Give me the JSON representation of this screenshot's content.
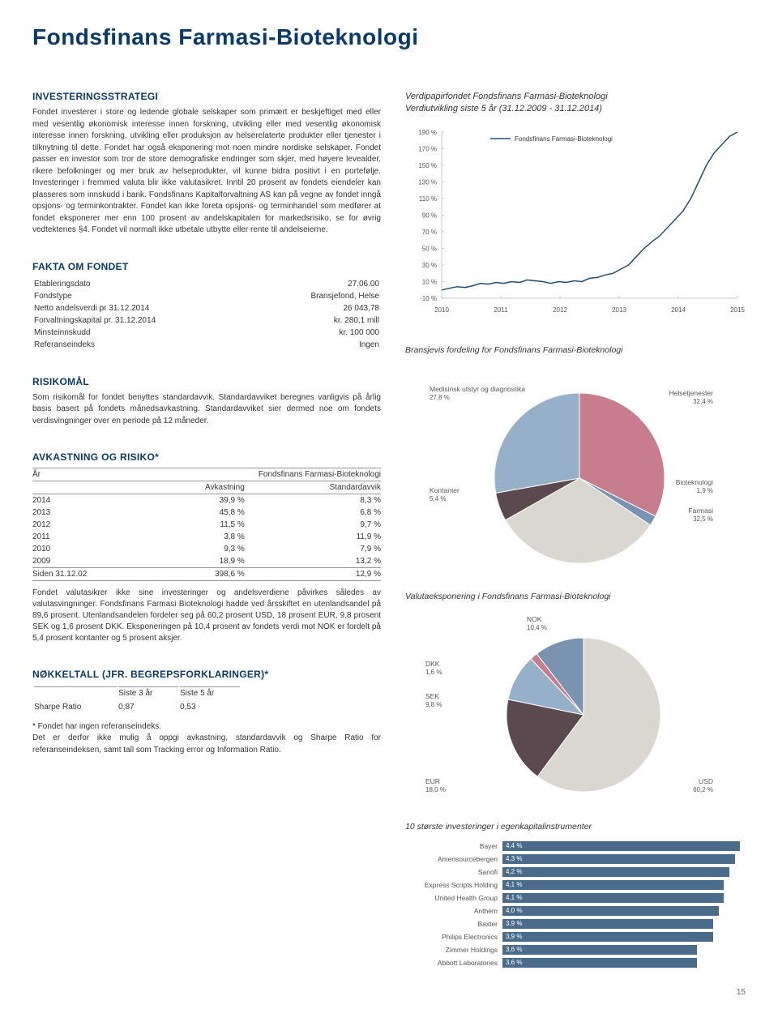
{
  "page": {
    "title": "Fondsfinans Farmasi-Bioteknologi",
    "number": "15"
  },
  "strategy": {
    "heading": "INVESTERINGSSTRATEGI",
    "text": "Fondet investerer i store og ledende globale selskaper som primært er beskjeftiget med eller med vesentlig økonomisk interesse innen forskning, utvikling eller med vesentlig økonomisk interesse innen forskning, utvikling eller produksjon av helserelaterte produkter eller tjenester i tilknytning til dette. Fondet har også eksponering mot noen mindre nordiske selskaper. Fondet passer en investor som tror de store demografiske endringer som skjer, med høyere levealder, rikere befolkninger og mer bruk av helseprodukter, vil kunne bidra positivt i en portefølje. Investeringer i fremmed valuta blir ikke valutasikret. Inntil 20 prosent av fondets eiendeler kan plasseres som innskudd i bank. Fondsfinans Kapitalforvaltning AS kan på vegne av fondet inngå opsjons- og terminkontrakter. Fondet kan ikke foreta opsjons- og terminhandel som medfører at fondet eksponerer mer enn 100 prosent av andelskapitalen for markedsrisiko, se for øvrig vedtektenes §4. Fondet vil normalt ikke utbetale utbytte eller rente til andelseierne."
  },
  "facts": {
    "heading": "FAKTA OM FONDET",
    "rows": [
      [
        "Etableringsdato",
        "27.06.00"
      ],
      [
        "Fondstype",
        "Bransjefond, Helse"
      ],
      [
        "Netto andelsverdi pr 31.12.2014",
        "26 043,78"
      ],
      [
        "Forvaltningskapital pr. 31.12.2014",
        "kr. 280,1 mill"
      ],
      [
        "Minsteinnskudd",
        "kr. 100 000"
      ],
      [
        "Referanseindeks",
        "Ingen"
      ]
    ]
  },
  "risk": {
    "heading": "RISIKOMÅL",
    "text": "Som risikomål for fondet benyttes standardavvik. Standardavviket beregnes vanligvis på årlig basis basert på fondets månedsavkastning. Standardavviket sier dermed noe om fondets verdisvingninger over en periode på 12 måneder."
  },
  "returns": {
    "heading": "AVKASTNING OG RISIKO*",
    "header_label": "Fondsfinans Farmasi-Bioteknologi",
    "col_year": "År",
    "col_return": "Avkastning",
    "col_std": "Standardavvik",
    "rows": [
      [
        "2014",
        "39,9 %",
        "8,3 %"
      ],
      [
        "2013",
        "45,8 %",
        "6,8 %"
      ],
      [
        "2012",
        "11,5 %",
        "9,7 %"
      ],
      [
        "2011",
        "3,8 %",
        "11,9 %"
      ],
      [
        "2010",
        "9,3 %",
        "7,9 %"
      ],
      [
        "2009",
        "18,9 %",
        "13,2 %"
      ],
      [
        "Siden 31.12.02",
        "398,6 %",
        "12,9 %"
      ]
    ],
    "note": "Fondet valutasikrer ikke sine investeringer og andelsverdiene påvirkes således av valutasvingninger. Fondsfinans Farmasi Bioteknologi hadde ved årsskiftet en utenlandsandel på 89,6 prosent. Utenlandsandelen fordeler seg på 60,2 prosent USD, 18 prosent EUR, 9,8 prosent SEK og 1,6 prosent DKK. Eksponeringen på 10,4 prosent av fondets verdi mot NOK er fordelt på 5,4 prosent kontanter og 5 prosent aksjer."
  },
  "keyfig": {
    "heading": "NØKKELTALL (JFR. BEGREPSFORKLARINGER)*",
    "col3": "Siste 3 år",
    "col5": "Siste 5 år",
    "row_label": "Sharpe Ratio",
    "v3": "0,87",
    "v5": "0,53",
    "footnote1": "* Fondet har ingen referanseindeks.",
    "footnote2": "Det er derfor ikke mulig å oppgi avkastning, standardavvik og Sharpe Ratio for referanseindeksen, samt tall som Tracking error og  Information Ratio."
  },
  "linechart": {
    "title1": "Verdipapirfondet Fondsfinans Farmasi-Bioteknologi",
    "title2": "Verdiutvikling siste 5 år (31.12.2009 - 31.12.2014)",
    "legend": "Fondsfinans Farmasi-Bioteknologi",
    "y_ticks": [
      "-10 %",
      "10 %",
      "30 %",
      "50 %",
      "70 %",
      "90 %",
      "110 %",
      "130 %",
      "150 %",
      "170 %",
      "190 %"
    ],
    "x_ticks": [
      "2010",
      "2011",
      "2012",
      "2013",
      "2014",
      "2015"
    ],
    "ylim": [
      -10,
      190
    ],
    "line_color": "#1f4e79",
    "background": "#ffffff",
    "data": [
      0,
      2,
      4,
      3,
      5,
      8,
      7,
      9,
      8,
      10,
      9,
      12,
      11,
      10,
      8,
      10,
      9,
      11,
      10,
      14,
      15,
      18,
      20,
      25,
      30,
      40,
      50,
      58,
      65,
      75,
      85,
      95,
      110,
      130,
      150,
      165,
      175,
      185,
      190
    ]
  },
  "sector_title": "Bransjevis fordeling for Fondsfinans Farmasi-Bioteknologi",
  "sector_pie": {
    "slices": [
      {
        "label": "Helsetjenester",
        "pct": "32,4 %",
        "value": 32.4,
        "color": "#c77d8d"
      },
      {
        "label": "Bioteknologi",
        "pct": "1,9 %",
        "value": 1.9,
        "color": "#7a93b0"
      },
      {
        "label": "Farmasi",
        "pct": "32,5 %",
        "value": 32.5,
        "color": "#d9d7cf"
      },
      {
        "label": "Kontanter",
        "pct": "5,4 %",
        "value": 5.4,
        "color": "#5a4a50"
      },
      {
        "label": "Medisinsk utstyr og diagnostika",
        "pct": "27,8 %",
        "value": 27.8,
        "color": "#97b0c9"
      }
    ]
  },
  "currency_title": "Valutaeksponering i Fondsfinans Farmasi-Bioteknologi",
  "currency_pie": {
    "slices": [
      {
        "label": "USD",
        "pct": "60,2 %",
        "value": 60.2,
        "color": "#d9d7cf"
      },
      {
        "label": "EUR",
        "pct": "18,0 %",
        "value": 18.0,
        "color": "#5a4a50"
      },
      {
        "label": "SEK",
        "pct": "9,8 %",
        "value": 9.8,
        "color": "#97b0c9"
      },
      {
        "label": "DKK",
        "pct": "1,6 %",
        "value": 1.6,
        "color": "#c77d8d"
      },
      {
        "label": "NOK",
        "pct": "10,4 %",
        "value": 10.4,
        "color": "#7a93b0"
      }
    ]
  },
  "holdings": {
    "title": "10 største investeringer i egenkapitalinstrumenter",
    "bar_color": "#4a6b8a",
    "max": 4.5,
    "rows": [
      {
        "label": "Bayer",
        "pct": "4,4 %",
        "v": 4.4
      },
      {
        "label": "Amerisourcebergen",
        "pct": "4,3 %",
        "v": 4.3
      },
      {
        "label": "Sanofi",
        "pct": "4,2 %",
        "v": 4.2
      },
      {
        "label": "Express Scripts Holding",
        "pct": "4,1 %",
        "v": 4.1
      },
      {
        "label": "United Health Group",
        "pct": "4,1 %",
        "v": 4.1
      },
      {
        "label": "Anthem",
        "pct": "4,0 %",
        "v": 4.0
      },
      {
        "label": "Baxter",
        "pct": "3,9 %",
        "v": 3.9
      },
      {
        "label": "Philips Electronics",
        "pct": "3,9 %",
        "v": 3.9
      },
      {
        "label": "Zimmer Holdings",
        "pct": "3,6 %",
        "v": 3.6
      },
      {
        "label": "Abbott Laboratories",
        "pct": "3,6 %",
        "v": 3.6
      }
    ]
  }
}
